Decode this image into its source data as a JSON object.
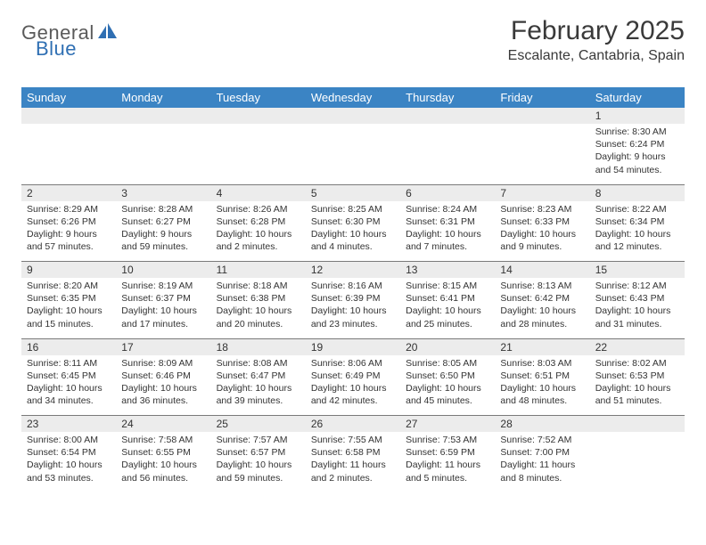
{
  "brand": {
    "part1": "General",
    "part2": "Blue"
  },
  "title": "February 2025",
  "location": "Escalante, Cantabria, Spain",
  "colors": {
    "header_bg": "#3b84c4",
    "header_text": "#ffffff",
    "daynum_bg": "#ececec",
    "cell_text": "#333333",
    "rule": "#7a7a7a",
    "logo_gray": "#5a5a5a",
    "logo_blue": "#2f6fb3"
  },
  "weekdays": [
    "Sunday",
    "Monday",
    "Tuesday",
    "Wednesday",
    "Thursday",
    "Friday",
    "Saturday"
  ],
  "weeks": [
    [
      {
        "n": "",
        "t": ""
      },
      {
        "n": "",
        "t": ""
      },
      {
        "n": "",
        "t": ""
      },
      {
        "n": "",
        "t": ""
      },
      {
        "n": "",
        "t": ""
      },
      {
        "n": "",
        "t": ""
      },
      {
        "n": "1",
        "t": "Sunrise: 8:30 AM\nSunset: 6:24 PM\nDaylight: 9 hours and 54 minutes."
      }
    ],
    [
      {
        "n": "2",
        "t": "Sunrise: 8:29 AM\nSunset: 6:26 PM\nDaylight: 9 hours and 57 minutes."
      },
      {
        "n": "3",
        "t": "Sunrise: 8:28 AM\nSunset: 6:27 PM\nDaylight: 9 hours and 59 minutes."
      },
      {
        "n": "4",
        "t": "Sunrise: 8:26 AM\nSunset: 6:28 PM\nDaylight: 10 hours and 2 minutes."
      },
      {
        "n": "5",
        "t": "Sunrise: 8:25 AM\nSunset: 6:30 PM\nDaylight: 10 hours and 4 minutes."
      },
      {
        "n": "6",
        "t": "Sunrise: 8:24 AM\nSunset: 6:31 PM\nDaylight: 10 hours and 7 minutes."
      },
      {
        "n": "7",
        "t": "Sunrise: 8:23 AM\nSunset: 6:33 PM\nDaylight: 10 hours and 9 minutes."
      },
      {
        "n": "8",
        "t": "Sunrise: 8:22 AM\nSunset: 6:34 PM\nDaylight: 10 hours and 12 minutes."
      }
    ],
    [
      {
        "n": "9",
        "t": "Sunrise: 8:20 AM\nSunset: 6:35 PM\nDaylight: 10 hours and 15 minutes."
      },
      {
        "n": "10",
        "t": "Sunrise: 8:19 AM\nSunset: 6:37 PM\nDaylight: 10 hours and 17 minutes."
      },
      {
        "n": "11",
        "t": "Sunrise: 8:18 AM\nSunset: 6:38 PM\nDaylight: 10 hours and 20 minutes."
      },
      {
        "n": "12",
        "t": "Sunrise: 8:16 AM\nSunset: 6:39 PM\nDaylight: 10 hours and 23 minutes."
      },
      {
        "n": "13",
        "t": "Sunrise: 8:15 AM\nSunset: 6:41 PM\nDaylight: 10 hours and 25 minutes."
      },
      {
        "n": "14",
        "t": "Sunrise: 8:13 AM\nSunset: 6:42 PM\nDaylight: 10 hours and 28 minutes."
      },
      {
        "n": "15",
        "t": "Sunrise: 8:12 AM\nSunset: 6:43 PM\nDaylight: 10 hours and 31 minutes."
      }
    ],
    [
      {
        "n": "16",
        "t": "Sunrise: 8:11 AM\nSunset: 6:45 PM\nDaylight: 10 hours and 34 minutes."
      },
      {
        "n": "17",
        "t": "Sunrise: 8:09 AM\nSunset: 6:46 PM\nDaylight: 10 hours and 36 minutes."
      },
      {
        "n": "18",
        "t": "Sunrise: 8:08 AM\nSunset: 6:47 PM\nDaylight: 10 hours and 39 minutes."
      },
      {
        "n": "19",
        "t": "Sunrise: 8:06 AM\nSunset: 6:49 PM\nDaylight: 10 hours and 42 minutes."
      },
      {
        "n": "20",
        "t": "Sunrise: 8:05 AM\nSunset: 6:50 PM\nDaylight: 10 hours and 45 minutes."
      },
      {
        "n": "21",
        "t": "Sunrise: 8:03 AM\nSunset: 6:51 PM\nDaylight: 10 hours and 48 minutes."
      },
      {
        "n": "22",
        "t": "Sunrise: 8:02 AM\nSunset: 6:53 PM\nDaylight: 10 hours and 51 minutes."
      }
    ],
    [
      {
        "n": "23",
        "t": "Sunrise: 8:00 AM\nSunset: 6:54 PM\nDaylight: 10 hours and 53 minutes."
      },
      {
        "n": "24",
        "t": "Sunrise: 7:58 AM\nSunset: 6:55 PM\nDaylight: 10 hours and 56 minutes."
      },
      {
        "n": "25",
        "t": "Sunrise: 7:57 AM\nSunset: 6:57 PM\nDaylight: 10 hours and 59 minutes."
      },
      {
        "n": "26",
        "t": "Sunrise: 7:55 AM\nSunset: 6:58 PM\nDaylight: 11 hours and 2 minutes."
      },
      {
        "n": "27",
        "t": "Sunrise: 7:53 AM\nSunset: 6:59 PM\nDaylight: 11 hours and 5 minutes."
      },
      {
        "n": "28",
        "t": "Sunrise: 7:52 AM\nSunset: 7:00 PM\nDaylight: 11 hours and 8 minutes."
      },
      {
        "n": "",
        "t": ""
      }
    ]
  ]
}
